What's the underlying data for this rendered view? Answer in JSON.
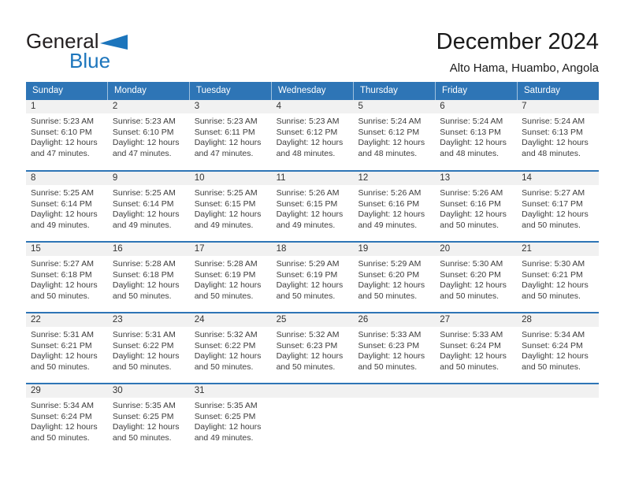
{
  "logo": {
    "part1": "General",
    "part2": "Blue"
  },
  "header": {
    "title": "December 2024",
    "subtitle": "Alto Hama, Huambo, Angola"
  },
  "colors": {
    "header_bg": "#2E75B6",
    "separator_line": "#2E75B6",
    "logo_blue": "#1C75BC",
    "day_band_bg": "#F1F1F1"
  },
  "calendar": {
    "day_headers": [
      "Sunday",
      "Monday",
      "Tuesday",
      "Wednesday",
      "Thursday",
      "Friday",
      "Saturday"
    ],
    "weeks": [
      [
        {
          "day": "1",
          "lines": [
            "Sunrise: 5:23 AM",
            "Sunset: 6:10 PM",
            "Daylight: 12 hours",
            "and 47 minutes."
          ]
        },
        {
          "day": "2",
          "lines": [
            "Sunrise: 5:23 AM",
            "Sunset: 6:10 PM",
            "Daylight: 12 hours",
            "and 47 minutes."
          ]
        },
        {
          "day": "3",
          "lines": [
            "Sunrise: 5:23 AM",
            "Sunset: 6:11 PM",
            "Daylight: 12 hours",
            "and 47 minutes."
          ]
        },
        {
          "day": "4",
          "lines": [
            "Sunrise: 5:23 AM",
            "Sunset: 6:12 PM",
            "Daylight: 12 hours",
            "and 48 minutes."
          ]
        },
        {
          "day": "5",
          "lines": [
            "Sunrise: 5:24 AM",
            "Sunset: 6:12 PM",
            "Daylight: 12 hours",
            "and 48 minutes."
          ]
        },
        {
          "day": "6",
          "lines": [
            "Sunrise: 5:24 AM",
            "Sunset: 6:13 PM",
            "Daylight: 12 hours",
            "and 48 minutes."
          ]
        },
        {
          "day": "7",
          "lines": [
            "Sunrise: 5:24 AM",
            "Sunset: 6:13 PM",
            "Daylight: 12 hours",
            "and 48 minutes."
          ]
        }
      ],
      [
        {
          "day": "8",
          "lines": [
            "Sunrise: 5:25 AM",
            "Sunset: 6:14 PM",
            "Daylight: 12 hours",
            "and 49 minutes."
          ]
        },
        {
          "day": "9",
          "lines": [
            "Sunrise: 5:25 AM",
            "Sunset: 6:14 PM",
            "Daylight: 12 hours",
            "and 49 minutes."
          ]
        },
        {
          "day": "10",
          "lines": [
            "Sunrise: 5:25 AM",
            "Sunset: 6:15 PM",
            "Daylight: 12 hours",
            "and 49 minutes."
          ]
        },
        {
          "day": "11",
          "lines": [
            "Sunrise: 5:26 AM",
            "Sunset: 6:15 PM",
            "Daylight: 12 hours",
            "and 49 minutes."
          ]
        },
        {
          "day": "12",
          "lines": [
            "Sunrise: 5:26 AM",
            "Sunset: 6:16 PM",
            "Daylight: 12 hours",
            "and 49 minutes."
          ]
        },
        {
          "day": "13",
          "lines": [
            "Sunrise: 5:26 AM",
            "Sunset: 6:16 PM",
            "Daylight: 12 hours",
            "and 50 minutes."
          ]
        },
        {
          "day": "14",
          "lines": [
            "Sunrise: 5:27 AM",
            "Sunset: 6:17 PM",
            "Daylight: 12 hours",
            "and 50 minutes."
          ]
        }
      ],
      [
        {
          "day": "15",
          "lines": [
            "Sunrise: 5:27 AM",
            "Sunset: 6:18 PM",
            "Daylight: 12 hours",
            "and 50 minutes."
          ]
        },
        {
          "day": "16",
          "lines": [
            "Sunrise: 5:28 AM",
            "Sunset: 6:18 PM",
            "Daylight: 12 hours",
            "and 50 minutes."
          ]
        },
        {
          "day": "17",
          "lines": [
            "Sunrise: 5:28 AM",
            "Sunset: 6:19 PM",
            "Daylight: 12 hours",
            "and 50 minutes."
          ]
        },
        {
          "day": "18",
          "lines": [
            "Sunrise: 5:29 AM",
            "Sunset: 6:19 PM",
            "Daylight: 12 hours",
            "and 50 minutes."
          ]
        },
        {
          "day": "19",
          "lines": [
            "Sunrise: 5:29 AM",
            "Sunset: 6:20 PM",
            "Daylight: 12 hours",
            "and 50 minutes."
          ]
        },
        {
          "day": "20",
          "lines": [
            "Sunrise: 5:30 AM",
            "Sunset: 6:20 PM",
            "Daylight: 12 hours",
            "and 50 minutes."
          ]
        },
        {
          "day": "21",
          "lines": [
            "Sunrise: 5:30 AM",
            "Sunset: 6:21 PM",
            "Daylight: 12 hours",
            "and 50 minutes."
          ]
        }
      ],
      [
        {
          "day": "22",
          "lines": [
            "Sunrise: 5:31 AM",
            "Sunset: 6:21 PM",
            "Daylight: 12 hours",
            "and 50 minutes."
          ]
        },
        {
          "day": "23",
          "lines": [
            "Sunrise: 5:31 AM",
            "Sunset: 6:22 PM",
            "Daylight: 12 hours",
            "and 50 minutes."
          ]
        },
        {
          "day": "24",
          "lines": [
            "Sunrise: 5:32 AM",
            "Sunset: 6:22 PM",
            "Daylight: 12 hours",
            "and 50 minutes."
          ]
        },
        {
          "day": "25",
          "lines": [
            "Sunrise: 5:32 AM",
            "Sunset: 6:23 PM",
            "Daylight: 12 hours",
            "and 50 minutes."
          ]
        },
        {
          "day": "26",
          "lines": [
            "Sunrise: 5:33 AM",
            "Sunset: 6:23 PM",
            "Daylight: 12 hours",
            "and 50 minutes."
          ]
        },
        {
          "day": "27",
          "lines": [
            "Sunrise: 5:33 AM",
            "Sunset: 6:24 PM",
            "Daylight: 12 hours",
            "and 50 minutes."
          ]
        },
        {
          "day": "28",
          "lines": [
            "Sunrise: 5:34 AM",
            "Sunset: 6:24 PM",
            "Daylight: 12 hours",
            "and 50 minutes."
          ]
        }
      ],
      [
        {
          "day": "29",
          "lines": [
            "Sunrise: 5:34 AM",
            "Sunset: 6:24 PM",
            "Daylight: 12 hours",
            "and 50 minutes."
          ]
        },
        {
          "day": "30",
          "lines": [
            "Sunrise: 5:35 AM",
            "Sunset: 6:25 PM",
            "Daylight: 12 hours",
            "and 50 minutes."
          ]
        },
        {
          "day": "31",
          "lines": [
            "Sunrise: 5:35 AM",
            "Sunset: 6:25 PM",
            "Daylight: 12 hours",
            "and 49 minutes."
          ]
        },
        null,
        null,
        null,
        null
      ]
    ]
  }
}
